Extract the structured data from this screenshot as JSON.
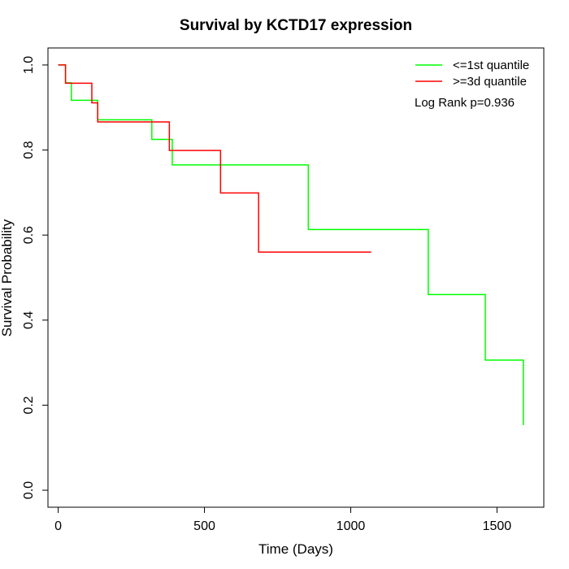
{
  "chart_data": {
    "type": "line",
    "title": "Survival by KCTD17 expression",
    "xlabel": "Time (Days)",
    "ylabel": "Survival Probability",
    "xlim": [
      -35,
      1660
    ],
    "ylim": [
      -0.04,
      1.04
    ],
    "x_ticks": [
      0,
      500,
      1000,
      1500
    ],
    "y_ticks": [
      0.0,
      0.2,
      0.4,
      0.6,
      0.8,
      1.0
    ],
    "x_tick_labels": [
      "0",
      "500",
      "1000",
      "1500"
    ],
    "y_tick_labels": [
      "0.0",
      "0.2",
      "0.4",
      "0.6",
      "0.8",
      "1.0"
    ],
    "legend_position": "top-right",
    "annotation": "Log Rank p=0.936",
    "grid": false,
    "series": [
      {
        "name": "<=1st quantile",
        "color": "#00ff00",
        "step_x": [
          0,
          25,
          45,
          135,
          320,
          390,
          765,
          855,
          1265,
          1460,
          1590
        ],
        "step_y": [
          1.0,
          0.958,
          0.917,
          0.871,
          0.825,
          0.765,
          0.765,
          0.613,
          0.46,
          0.306,
          0.153
        ]
      },
      {
        "name": ">=3d quantile",
        "color": "#ff0000",
        "step_x": [
          0,
          25,
          115,
          135,
          380,
          555,
          685,
          1070
        ],
        "step_y": [
          1.0,
          0.957,
          0.911,
          0.866,
          0.799,
          0.699,
          0.56,
          0.56
        ]
      }
    ]
  }
}
